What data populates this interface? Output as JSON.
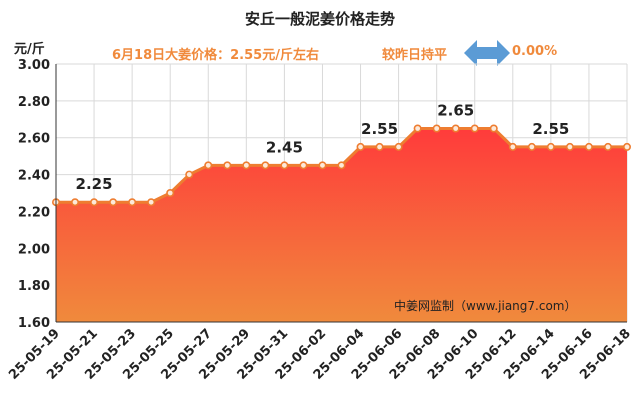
{
  "header": {
    "title": "安丘一般泥姜价格走势",
    "unit": "元/斤",
    "price_note": "6月18日大姜价格：2.55元/斤左右",
    "trend_text": "较昨日持平",
    "change_percent": "0.00%",
    "watermark": "中姜网监制（www.jiang7.com）"
  },
  "colors": {
    "fill_top": "#ff3b3b",
    "fill_bottom": "#f08a3c",
    "line": "#ee7d31",
    "arrow": "#5b9bd5",
    "banner_text": "#f08a3c"
  },
  "chart_data": {
    "type": "area",
    "title": "安丘一般泥姜价格走势",
    "ylabel": "元/斤",
    "xlabel": "",
    "ylim": [
      1.6,
      3.0
    ],
    "yticks": [
      "1.60",
      "1.80",
      "2.00",
      "2.20",
      "2.40",
      "2.60",
      "2.80",
      "3.00"
    ],
    "grid": true,
    "x": [
      "25-05-19",
      "25-05-20",
      "25-05-21",
      "25-05-22",
      "25-05-23",
      "25-05-24",
      "25-05-25",
      "25-05-26",
      "25-05-27",
      "25-05-28",
      "25-05-29",
      "25-05-30",
      "25-05-31",
      "25-06-01",
      "25-06-02",
      "25-06-03",
      "25-06-04",
      "25-06-05",
      "25-06-06",
      "25-06-07",
      "25-06-08",
      "25-06-09",
      "25-06-10",
      "25-06-11",
      "25-06-12",
      "25-06-13",
      "25-06-14",
      "25-06-15",
      "25-06-16",
      "25-06-17",
      "25-06-18"
    ],
    "xtick_labels": [
      "25-05-19",
      "25-05-21",
      "25-05-23",
      "25-05-25",
      "25-05-27",
      "25-05-29",
      "25-05-31",
      "25-06-02",
      "25-06-04",
      "25-06-06",
      "25-06-08",
      "25-06-10",
      "25-06-12",
      "25-06-14",
      "25-06-16",
      "25-06-18"
    ],
    "values": [
      2.25,
      2.25,
      2.25,
      2.25,
      2.25,
      2.25,
      2.3,
      2.4,
      2.45,
      2.45,
      2.45,
      2.45,
      2.45,
      2.45,
      2.45,
      2.45,
      2.55,
      2.55,
      2.55,
      2.65,
      2.65,
      2.65,
      2.65,
      2.65,
      2.55,
      2.55,
      2.55,
      2.55,
      2.55,
      2.55,
      2.55
    ],
    "annotations": [
      {
        "x": "25-05-21",
        "label": "2.25"
      },
      {
        "x": "25-05-31",
        "label": "2.45"
      },
      {
        "x": "25-06-05",
        "label": "2.55"
      },
      {
        "x": "25-06-09",
        "label": "2.65"
      },
      {
        "x": "25-06-14",
        "label": "2.55"
      }
    ]
  }
}
